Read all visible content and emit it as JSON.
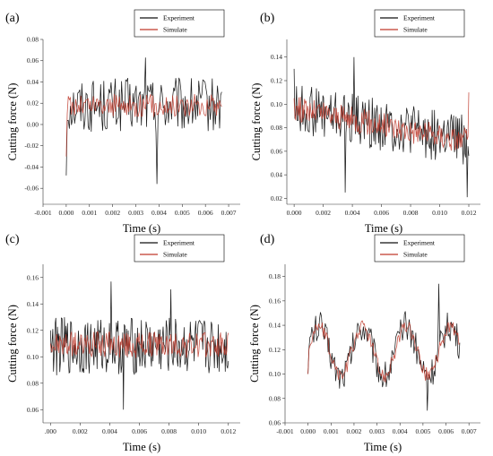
{
  "colors": {
    "experiment": "#111111",
    "simulate": "#c0392b",
    "axis": "#333333"
  },
  "chart_data": [
    {
      "type": "line",
      "panel_label": "(a)",
      "xlabel": "Time (s)",
      "ylabel": "Cutting force (N)",
      "xlim": [
        -0.001,
        0.0075
      ],
      "ylim": [
        -0.075,
        0.08
      ],
      "xticks": [
        "-0.001",
        "0.000",
        "0.001",
        "0.002",
        "0.003",
        "0.004",
        "0.005",
        "0.006",
        "0.007"
      ],
      "yticks": [
        "-0.06",
        "-0.04",
        "-0.02",
        "0.00",
        "0.02",
        "0.04",
        "0.06",
        "0.08"
      ],
      "x_range": [
        0.0,
        0.0067
      ],
      "legend": [
        "Experiment",
        "Simulate"
      ],
      "legend_position": "top-right",
      "series": [
        {
          "name": "Experiment",
          "mean": 0.018,
          "amp": 0.026,
          "trend": 0.0,
          "period": 0.0,
          "start": -0.048,
          "points": 150,
          "spikes": [
            [
              0.0039,
              -0.056
            ],
            [
              0.0034,
              0.063
            ]
          ]
        },
        {
          "name": "Simulate",
          "mean": 0.018,
          "amp": 0.011,
          "trend": 0.0,
          "period": 0.0,
          "start": -0.03,
          "points": 150,
          "spikes": []
        }
      ]
    },
    {
      "type": "line",
      "panel_label": "(b)",
      "xlabel": "Time (s)",
      "ylabel": "Cutting force (N)",
      "xlim": [
        -0.0005,
        0.0128
      ],
      "ylim": [
        0.015,
        0.155
      ],
      "xticks": [
        "0.000",
        "0.002",
        "0.004",
        "0.006",
        "0.008",
        "0.010",
        "0.012"
      ],
      "yticks": [
        "0.02",
        "0.04",
        "0.06",
        "0.08",
        "0.10",
        "0.12",
        "0.14"
      ],
      "x_range": [
        0.0,
        0.012
      ],
      "legend": [
        "Experiment",
        "Simulate"
      ],
      "legend_position": "top-right",
      "series": [
        {
          "name": "Experiment",
          "mean": 0.088,
          "amp": 0.022,
          "trend": -0.028,
          "period": 0.0,
          "start": 0.13,
          "points": 220,
          "spikes": [
            [
              0.0041,
              0.14
            ],
            [
              0.0035,
              0.025
            ],
            [
              0.0119,
              0.021
            ]
          ]
        },
        {
          "name": "Simulate",
          "mean": 0.088,
          "amp": 0.011,
          "trend": -0.028,
          "period": 0.0,
          "start": 0.105,
          "points": 220,
          "spikes": [
            [
              0.012,
              0.11
            ]
          ]
        }
      ]
    },
    {
      "type": "line",
      "panel_label": "(c)",
      "xlabel": "Time (s)",
      "ylabel": "Cutting force (N)",
      "xlim": [
        -0.0005,
        0.0128
      ],
      "ylim": [
        0.05,
        0.17
      ],
      "xticks": [
        ".000",
        "0.002",
        "0.004",
        "0.006",
        "0.008",
        "0.010",
        "0.012"
      ],
      "yticks": [
        "0.06",
        "0.08",
        "0.10",
        "0.12",
        "0.14",
        "0.16"
      ],
      "x_range": [
        0.0,
        0.012
      ],
      "legend": [
        "Experiment",
        "Simulate"
      ],
      "legend_position": "top-right",
      "series": [
        {
          "name": "Experiment",
          "mean": 0.108,
          "amp": 0.022,
          "trend": 0.0,
          "period": 0.0,
          "start": 0.12,
          "points": 230,
          "spikes": [
            [
              0.0041,
              0.157
            ],
            [
              0.0049,
              0.06
            ],
            [
              0.0081,
              0.151
            ]
          ]
        },
        {
          "name": "Simulate",
          "mean": 0.109,
          "amp": 0.01,
          "trend": 0.0,
          "period": 0.0,
          "start": 0.11,
          "points": 230,
          "spikes": []
        }
      ]
    },
    {
      "type": "line",
      "panel_label": "(d)",
      "xlabel": "Time (s)",
      "ylabel": "Cutting force (N)",
      "xlim": [
        -0.001,
        0.0075
      ],
      "ylim": [
        0.06,
        0.19
      ],
      "xticks": [
        "-0.001",
        "0.000",
        "0.001",
        "0.002",
        "0.003",
        "0.004",
        "0.005",
        "0.006",
        "0.007"
      ],
      "yticks": [
        "0.06",
        "0.08",
        "0.10",
        "0.12",
        "0.14",
        "0.16",
        "0.18"
      ],
      "x_range": [
        0.0,
        0.0066
      ],
      "legend": [
        "Experiment",
        "Simulate"
      ],
      "legend_position": "top-right",
      "series": [
        {
          "name": "Experiment",
          "mean": 0.119,
          "amp": 0.013,
          "trend": 0.0,
          "period": 0.0019,
          "wave": 0.02,
          "start": 0.1,
          "points": 160,
          "spikes": [
            [
              0.0057,
              0.174
            ],
            [
              0.0052,
              0.07
            ]
          ]
        },
        {
          "name": "Simulate",
          "mean": 0.119,
          "amp": 0.006,
          "trend": 0.0,
          "period": 0.0019,
          "wave": 0.02,
          "start": 0.1,
          "points": 160,
          "spikes": []
        }
      ]
    }
  ]
}
